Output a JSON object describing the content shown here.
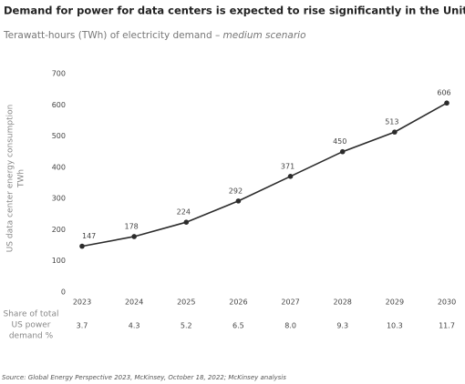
{
  "chart_data": {
    "type": "line",
    "title": "Demand for power for data centers is expected to rise significantly in the United States",
    "subtitle": "Terawatt-hours (TWh) of electricity demand –",
    "subtitle_emphasis": "medium scenario",
    "y_label": [
      "US data center energy consumption",
      "TWh"
    ],
    "categories": [
      "2023",
      "2024",
      "2025",
      "2026",
      "2027",
      "2028",
      "2029",
      "2030"
    ],
    "series": [
      {
        "name": "US data center energy consumption",
        "color": "#2b2b2b",
        "values": [
          147,
          178,
          224,
          292,
          371,
          450,
          513,
          606
        ]
      }
    ],
    "ylim": [
      0,
      700
    ],
    "yticks": [
      0,
      100,
      200,
      300,
      400,
      500,
      600,
      700
    ],
    "grid": false,
    "share": {
      "label": [
        "Share of total",
        "US power",
        "demand %"
      ],
      "values": [
        3.7,
        4.3,
        5.2,
        6.5,
        8.0,
        9.3,
        10.3,
        11.7
      ],
      "value_labels": [
        "3.7",
        "4.3",
        "5.2",
        "6.5",
        "8.0",
        "9.3",
        "10.3",
        "11.7"
      ]
    },
    "source": "Source: Global Energy Perspective 2023, McKinsey, October 18, 2022; McKinsey analysis"
  }
}
